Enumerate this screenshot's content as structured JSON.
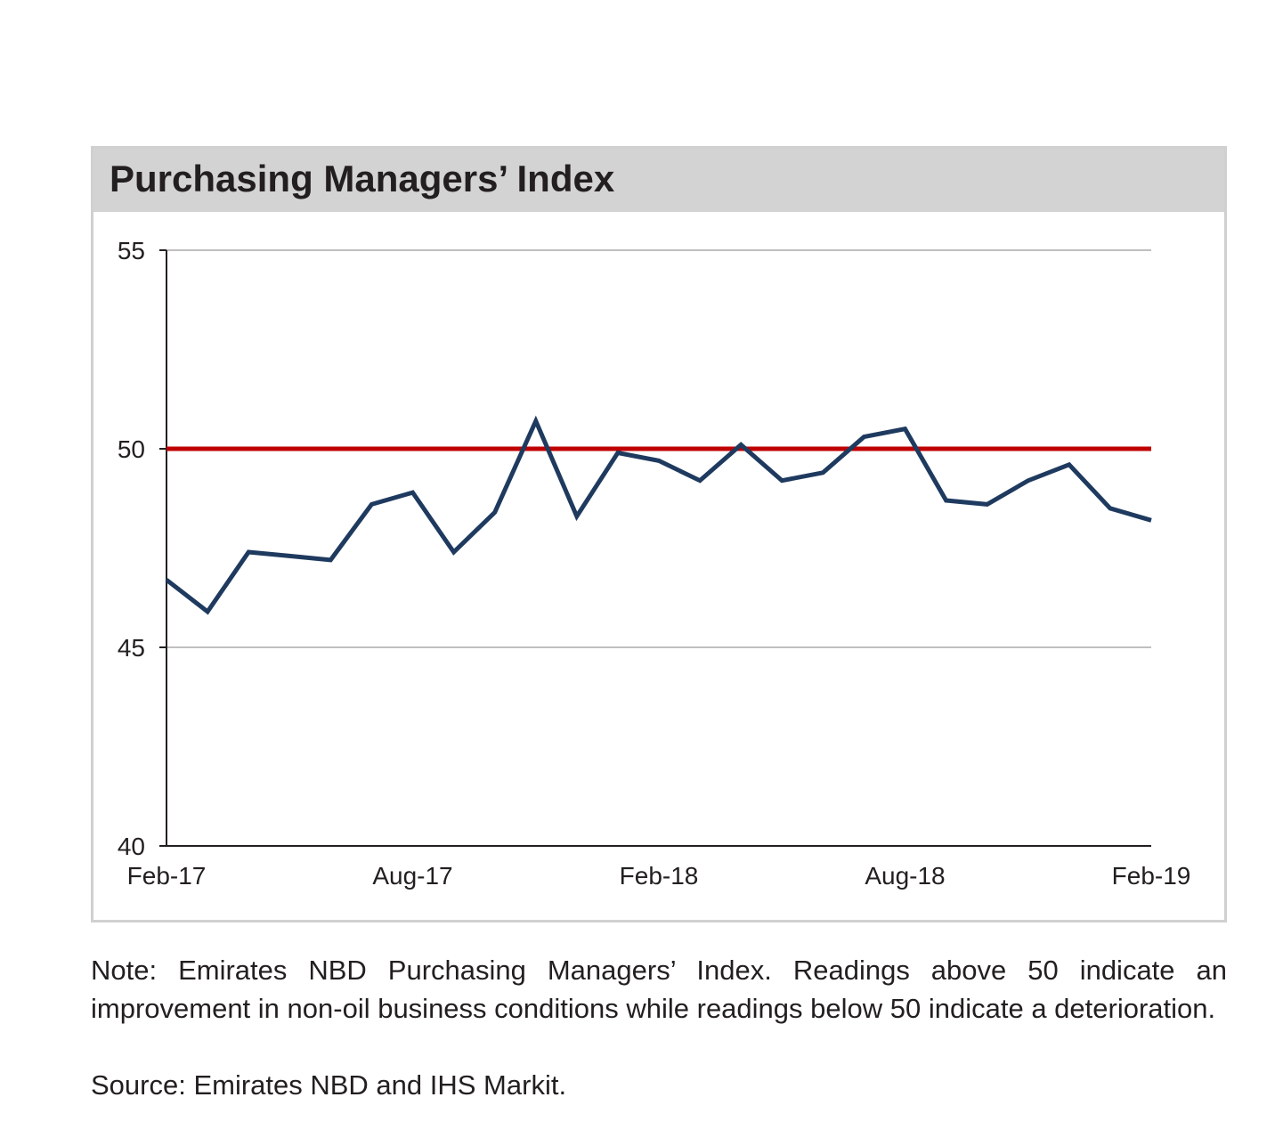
{
  "chart_data": {
    "type": "line",
    "title": "Purchasing Managers’ Index",
    "x": [
      "Feb-17",
      "Mar-17",
      "Apr-17",
      "May-17",
      "Jun-17",
      "Jul-17",
      "Aug-17",
      "Sep-17",
      "Oct-17",
      "Nov-17",
      "Dec-17",
      "Jan-18",
      "Feb-18",
      "Mar-18",
      "Apr-18",
      "May-18",
      "Jun-18",
      "Jul-18",
      "Aug-18",
      "Sep-18",
      "Oct-18",
      "Nov-18",
      "Dec-18",
      "Jan-19",
      "Feb-19"
    ],
    "x_tick_labels": [
      "Feb-17",
      "Aug-17",
      "Feb-18",
      "Aug-18",
      "Feb-19"
    ],
    "series": [
      {
        "values": [
          46.7,
          45.9,
          47.4,
          47.3,
          47.2,
          48.6,
          48.9,
          47.4,
          48.4,
          50.7,
          48.3,
          49.9,
          49.7,
          49.2,
          50.1,
          49.2,
          49.4,
          50.3,
          50.5,
          48.7,
          48.6,
          49.2,
          49.6,
          48.5,
          48.2
        ],
        "color": "#1f3a5f"
      }
    ],
    "reference_line": {
      "value": 50,
      "color": "#c00000"
    },
    "ylim": [
      40,
      55
    ],
    "y_ticks": [
      "40",
      "45",
      "50",
      "55"
    ],
    "xlabel": "",
    "ylabel": "",
    "grid": true,
    "legend": "none"
  },
  "footer": {
    "note": "Note: Emirates NBD Purchasing Managers’ Index. Readings above 50 indicate an improvement in non-oil business conditions while readings below 50 indicate a deterioration.",
    "source": "Source: Emirates NBD and IHS Markit."
  }
}
